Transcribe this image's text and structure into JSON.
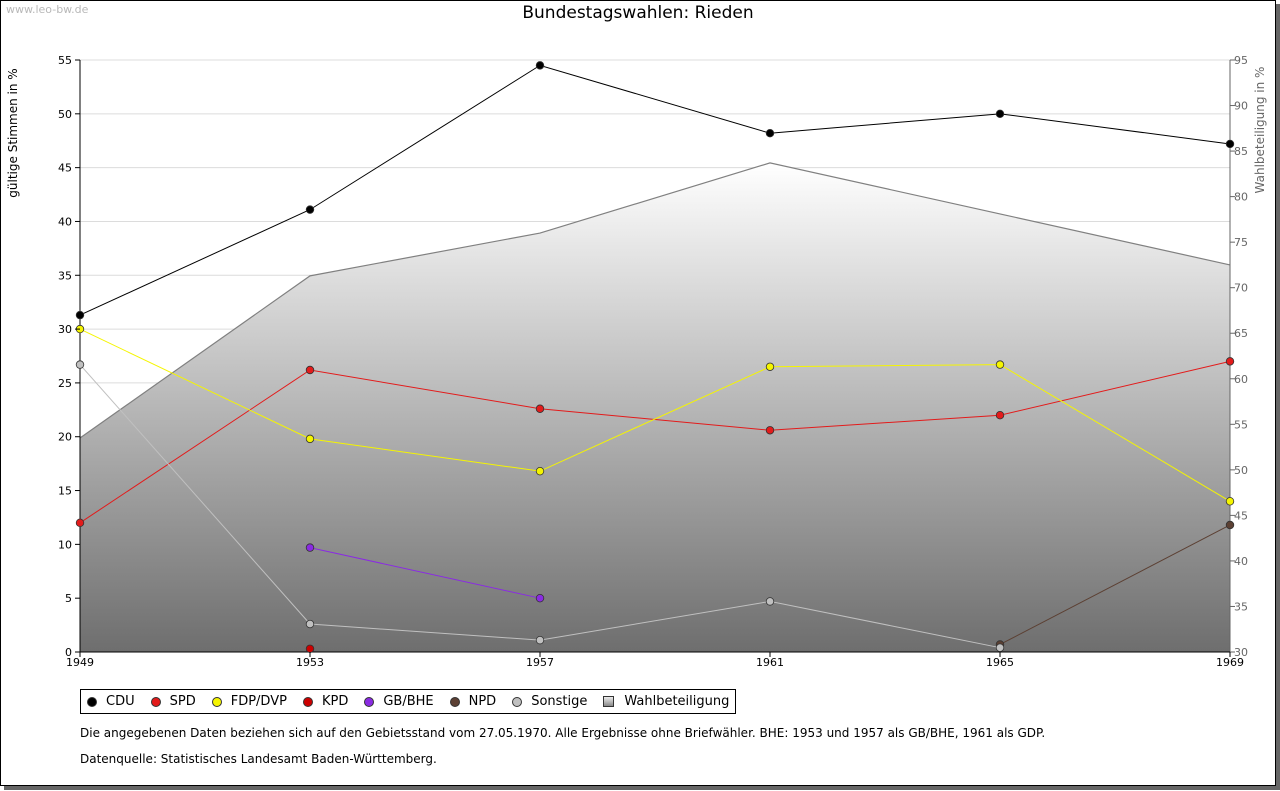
{
  "watermark": "www.leo-bw.de",
  "chart_data": {
    "type": "line",
    "title": "Bundestagswahlen: Rieden",
    "ylabel": "gültige Stimmen in %",
    "y2label": "Wahlbeteiligung in %",
    "x": [
      1949,
      1953,
      1957,
      1961,
      1965,
      1969
    ],
    "x_ticks": [
      "1949",
      "1953",
      "1957",
      "1961",
      "1965",
      "1969"
    ],
    "ylim": [
      0,
      55
    ],
    "y_ticks": [
      0,
      5,
      10,
      15,
      20,
      25,
      30,
      35,
      40,
      45,
      50,
      55
    ],
    "y2lim": [
      30,
      95
    ],
    "y2_ticks": [
      30,
      35,
      40,
      45,
      50,
      55,
      60,
      65,
      70,
      75,
      80,
      85,
      90,
      95
    ],
    "series": [
      {
        "name": "CDU",
        "color": "#000000",
        "values": [
          31.3,
          41.1,
          54.5,
          48.2,
          50.0,
          47.2
        ]
      },
      {
        "name": "SPD",
        "color": "#e31b1b",
        "values": [
          12.0,
          26.2,
          22.6,
          20.6,
          22.0,
          27.0
        ]
      },
      {
        "name": "FDP/DVP",
        "color": "#f5f500",
        "values": [
          30.0,
          19.8,
          16.8,
          26.5,
          26.7,
          14.0
        ]
      },
      {
        "name": "KPD",
        "color": "#cc0000",
        "values": [
          null,
          0.3,
          null,
          null,
          null,
          null
        ]
      },
      {
        "name": "GB/BHE",
        "color": "#8a2be2",
        "values": [
          null,
          9.7,
          5.0,
          null,
          null,
          null
        ]
      },
      {
        "name": "NPD",
        "color": "#5c4033",
        "values": [
          null,
          null,
          null,
          null,
          0.7,
          11.8
        ]
      },
      {
        "name": "Sonstige",
        "color": "#c0c0c0",
        "values": [
          26.7,
          2.6,
          1.1,
          4.7,
          0.4,
          null
        ]
      }
    ],
    "turnout": {
      "name": "Wahlbeteiligung",
      "axis": "right",
      "values": [
        53.5,
        71.3,
        76.0,
        83.7,
        78.1,
        72.5
      ]
    }
  },
  "legend": [
    "CDU",
    "SPD",
    "FDP/DVP",
    "KPD",
    "GB/BHE",
    "NPD",
    "Sonstige",
    "Wahlbeteiligung"
  ],
  "notes": {
    "line1": "Die angegebenen Daten beziehen sich auf den Gebietsstand vom 27.05.1970. Alle Ergebnisse ohne Briefwähler. BHE: 1953 und 1957 als GB/BHE, 1961 als GDP.",
    "line2": "Datenquelle: Statistisches Landesamt Baden-Württemberg."
  }
}
